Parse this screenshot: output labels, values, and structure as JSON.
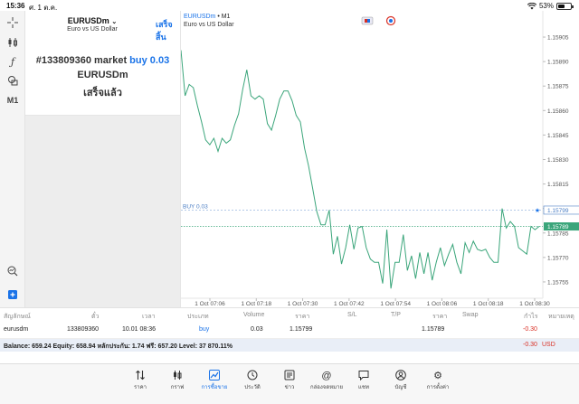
{
  "status_bar": {
    "time": "15:36",
    "date": "ศ. 1 ต.ค.",
    "battery": "53%",
    "battery_level": 0.53
  },
  "left_tools": {
    "crosshair": "crosshair-icon",
    "indicators": "indicators-icon",
    "function": "ƒ",
    "objects": "objects-icon",
    "timeframe": "M1",
    "zoom": "zoom-icon",
    "add": "add-icon"
  },
  "order_panel": {
    "symbol": "EURUSDm",
    "symbol_desc": "Euro vs US Dollar",
    "done_label": "เสร็จสิ้น",
    "order_prefix": "#133809360 market",
    "order_action": "buy 0.03",
    "order_symbol": "EURUSDm",
    "order_status": "เสร็จแล้ว"
  },
  "chart_header": {
    "symbol": "EURUSDm",
    "timeframe_sep": " • M1",
    "desc": "Euro vs US Dollar"
  },
  "chart_data": {
    "type": "line",
    "symbol": "EURUSDm",
    "timeframe": "M1",
    "x_ticks": [
      "1 Oct 07:06",
      "1 Oct 07:18",
      "1 Oct 07:30",
      "1 Oct 07:42",
      "1 Oct 07:54",
      "1 Oct 08:06",
      "1 Oct 08:18",
      "1 Oct 08:30"
    ],
    "y_ticks": [
      "1.15905",
      "1.15890",
      "1.15875",
      "1.15860",
      "1.15845",
      "1.15830",
      "1.15815",
      "1.15800",
      "1.15785",
      "1.15770",
      "1.15755"
    ],
    "ylim": [
      1.15745,
      1.1591
    ],
    "series": [
      {
        "color": "#3aa57a",
        "values": [
          1.15897,
          1.15869,
          1.15876,
          1.15874,
          1.15863,
          1.15853,
          1.15842,
          1.15839,
          1.15843,
          1.15835,
          1.15843,
          1.1584,
          1.15842,
          1.15851,
          1.15858,
          1.15873,
          1.15885,
          1.15869,
          1.15867,
          1.15869,
          1.15867,
          1.15852,
          1.15848,
          1.15857,
          1.15867,
          1.15872,
          1.15872,
          1.15866,
          1.15857,
          1.15853,
          1.15837,
          1.15826,
          1.15812,
          1.15798,
          1.1579,
          1.1579,
          1.15799,
          1.15772,
          1.15783,
          1.15766,
          1.15776,
          1.1579,
          1.15775,
          1.15788,
          1.15789,
          1.15776,
          1.15769,
          1.15767,
          1.15767,
          1.15754,
          1.15787,
          1.15751,
          1.15767,
          1.15767,
          1.15784,
          1.15762,
          1.15771,
          1.15757,
          1.15773,
          1.1576,
          1.15773,
          1.15756,
          1.15767,
          1.15776,
          1.15765,
          1.15772,
          1.15778,
          1.15767,
          1.1576,
          1.15779,
          1.15773,
          1.1578,
          1.15775,
          1.15774,
          1.15775,
          1.1577,
          1.15767,
          1.15767,
          1.158,
          1.15788,
          1.15792,
          1.15789,
          1.15776,
          1.15774,
          1.15772,
          1.15789,
          1.15787,
          1.15789
        ]
      }
    ],
    "buy_line": {
      "label": "BUY 0.03",
      "value": 1.15799
    },
    "bid_line": {
      "value": 1.15789
    }
  },
  "price_labels": {
    "buy": "1.15799",
    "bid": "1.15789"
  },
  "table": {
    "headers": [
      "สัญลักษณ์",
      "ตั๋ว",
      "เวลา",
      "ประเภท",
      "Volume",
      "ราคา",
      "S/L",
      "T/P",
      "ราคา",
      "Swap",
      "กำไร",
      "หมายเหตุ"
    ],
    "row": {
      "symbol": "eurusdm",
      "ticket": "133809360",
      "time": "10.01 08:36",
      "type": "buy",
      "volume": "0.03",
      "open_price": "1.15799",
      "current_price": "1.15789",
      "profit": "-0.30"
    },
    "balance_line": "Balance: 659.24 Equity: 658.94 หลักประกัน: 1.74 ฟรี: 657.20 Level: 37 870.11%",
    "total_profit": "-0.30",
    "currency": "USD"
  },
  "tabs": [
    {
      "label": "ราคา",
      "icon": "quotes-icon"
    },
    {
      "label": "กราฟ",
      "icon": "chart-icon"
    },
    {
      "label": "การซื้อขาย",
      "icon": "trade-icon"
    },
    {
      "label": "ประวัติ",
      "icon": "history-icon"
    },
    {
      "label": "ข่าว",
      "icon": "news-icon"
    },
    {
      "label": "กล่องจดหมาย",
      "icon": "mailbox-icon"
    },
    {
      "label": "แชท",
      "icon": "chat-icon"
    },
    {
      "label": "บัญชี",
      "icon": "account-icon"
    },
    {
      "label": "การตั้งค่า",
      "icon": "settings-icon"
    }
  ],
  "active_tab": "การซื้อขาย",
  "colors": {
    "accent": "#1a73e8",
    "line": "#3aa57a",
    "loss": "#d93025"
  }
}
